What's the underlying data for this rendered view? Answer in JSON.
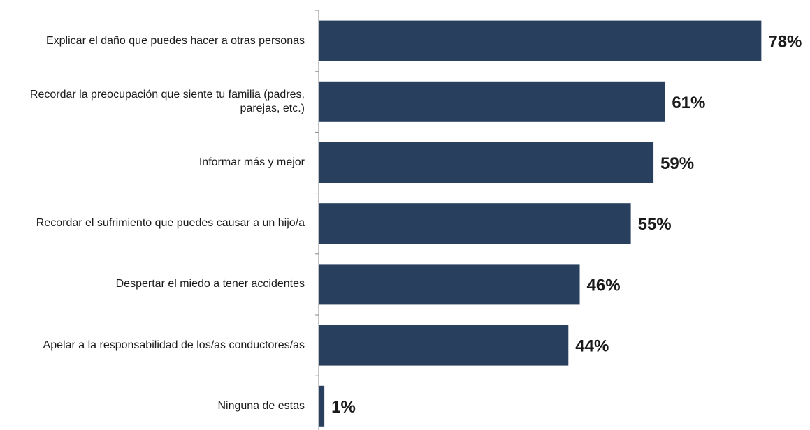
{
  "chart_data": {
    "type": "bar",
    "orientation": "horizontal",
    "categories": [
      "Explicar el daño que puedes hacer a otras personas",
      "Recordar la preocupación que siente tu familia (padres, parejas, etc.)",
      "Informar más y mejor",
      "Recordar el sufrimiento que puedes causar a un hijo/a",
      "Despertar el miedo a tener accidentes",
      "Apelar a la responsabilidad de los/as conductores/as",
      "Ninguna de estas"
    ],
    "values": [
      78,
      61,
      59,
      55,
      46,
      44,
      1
    ],
    "value_labels": [
      "78%",
      "61%",
      "59%",
      "55%",
      "46%",
      "44%",
      "1%"
    ],
    "unit": "%",
    "xlim": [
      0,
      100
    ],
    "bar_color": "#283f5e",
    "grid": false,
    "legend": "none"
  }
}
